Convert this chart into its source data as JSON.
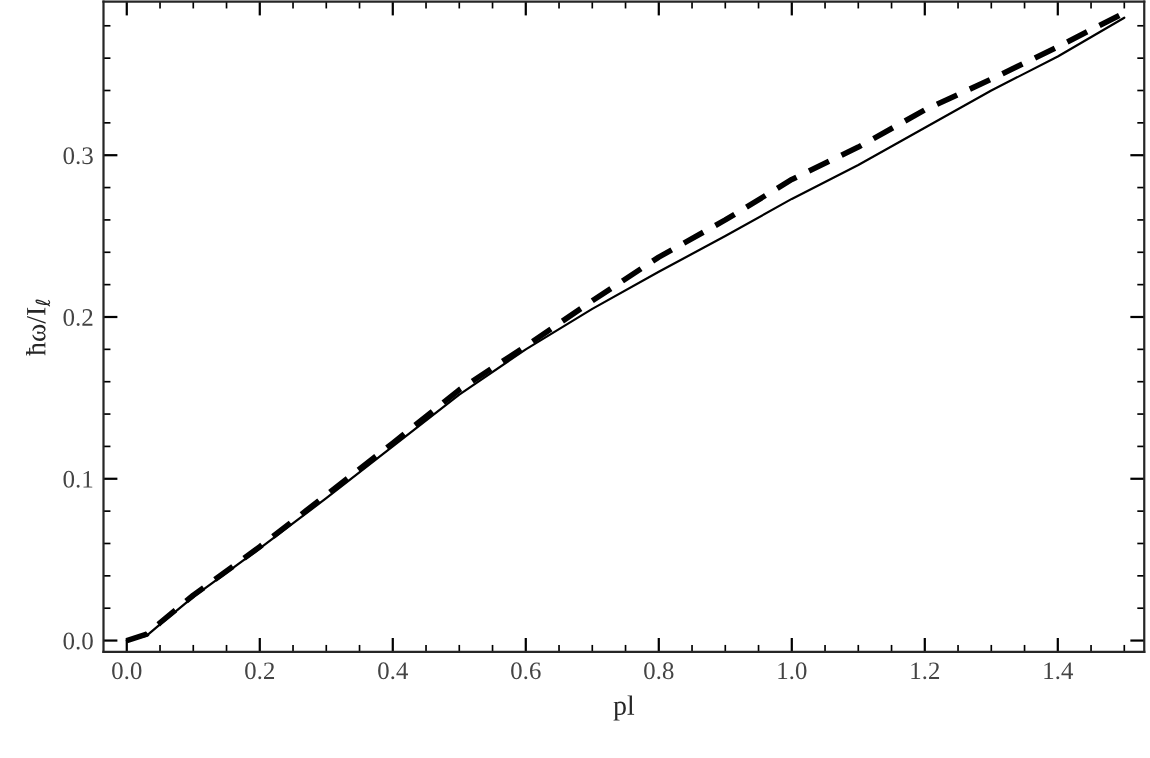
{
  "chart_data": {
    "type": "line",
    "xlabel": "pl",
    "ylabel": "ħω/I$_{ℓ}$",
    "x": [
      0,
      0.03,
      0.05,
      0.1,
      0.2,
      0.3,
      0.4,
      0.5,
      0.6,
      0.7,
      0.8,
      0.9,
      1.0,
      1.1,
      1.2,
      1.3,
      1.4,
      1.5
    ],
    "series": [
      {
        "color": "#000000",
        "line_style": "solid",
        "values": [
          0,
          0.003,
          0.01,
          0.027,
          0.057,
          0.088,
          0.12,
          0.152,
          0.18,
          0.205,
          0.228,
          0.25,
          0.273,
          0.294,
          0.317,
          0.34,
          0.361,
          0.385
        ]
      },
      {
        "color": "#000000",
        "line_style": "dashed",
        "values": [
          0,
          0.004,
          0.011,
          0.028,
          0.058,
          0.09,
          0.122,
          0.155,
          0.182,
          0.21,
          0.237,
          0.26,
          0.285,
          0.305,
          0.328,
          0.347,
          0.367,
          0.388
        ]
      }
    ],
    "xlim": [
      -0.035,
      1.53
    ],
    "ylim": [
      -0.007,
      0.395
    ],
    "xticks": [
      {
        "value": 0,
        "label": "0.0"
      },
      0.2,
      0.4,
      0.6,
      0.8,
      {
        "value": 1,
        "label": "1.0"
      },
      1.2,
      1.4
    ],
    "yticks": [
      {
        "value": 0,
        "label": "0.0"
      },
      0.1,
      0.2,
      0.3
    ],
    "grid": false
  }
}
